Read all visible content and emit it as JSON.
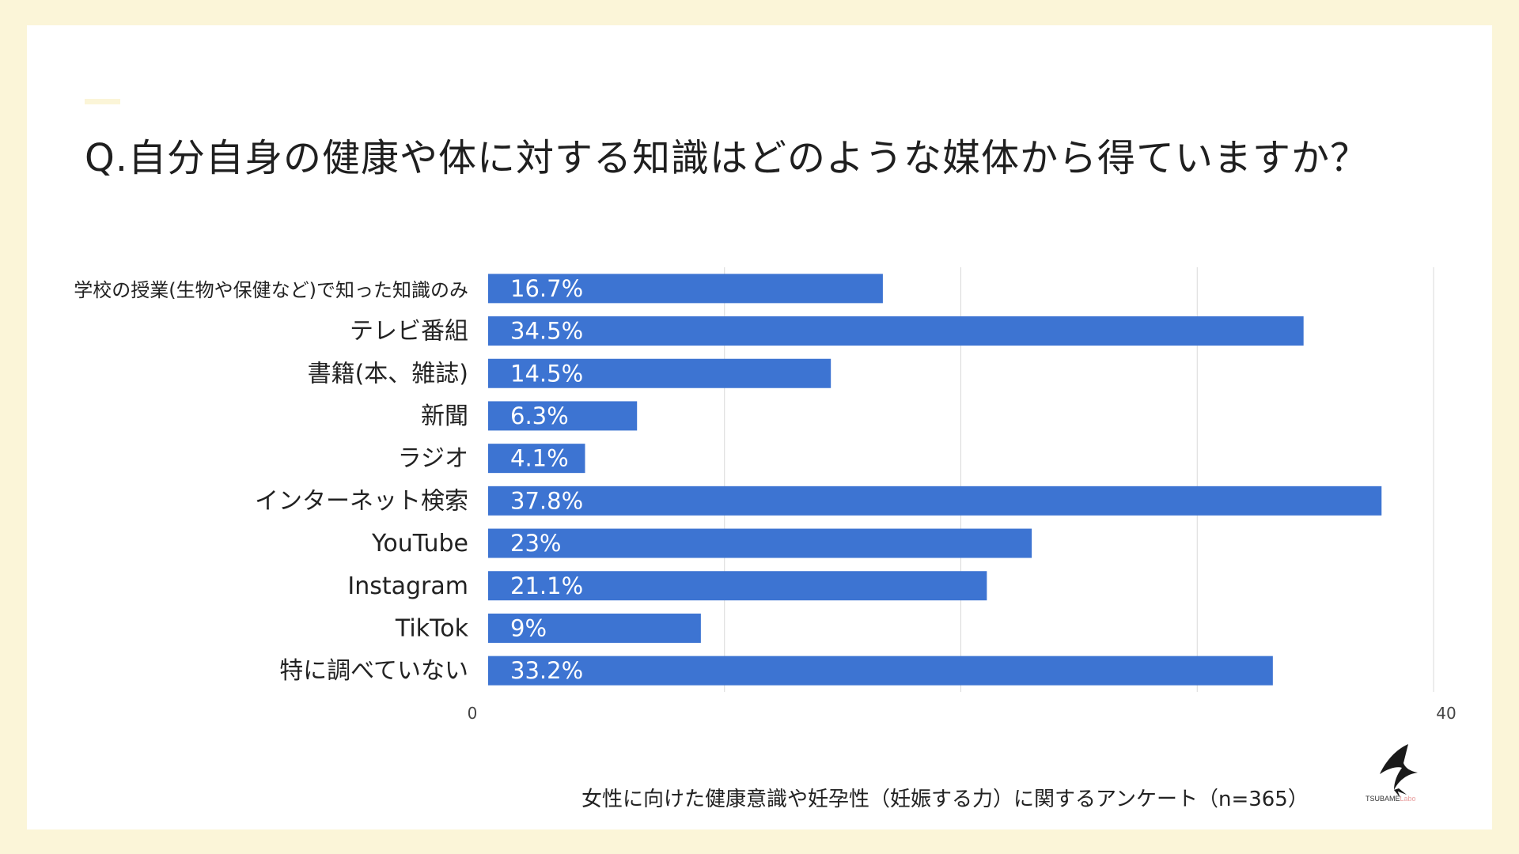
{
  "title": "Q.自分自身の健康や体に対する知識はどのような媒体から得ていますか？",
  "footer": "女性に向けた健康意識や妊孕性（妊娠する力）に関するアンケート（n=365）",
  "logo": {
    "name": "TSUBAME",
    "suffix": "Labo"
  },
  "colors": {
    "bar": "#3d74d2",
    "background": "#fbf5d8",
    "card": "#ffffff",
    "grid": "#d9d9d9"
  },
  "chart_data": {
    "type": "bar",
    "orientation": "horizontal",
    "categories": [
      "学校の授業(生物や保健など)で知った知識のみ",
      "テレビ番組",
      "書籍(本、雑誌)",
      "新聞",
      "ラジオ",
      "インターネット検索",
      "YouTube",
      "Instagram",
      "TikTok",
      "特に調べていない"
    ],
    "values": [
      16.7,
      34.5,
      14.5,
      6.3,
      4.1,
      37.8,
      23,
      21.1,
      9,
      33.2
    ],
    "data_labels": [
      "16.7%",
      "34.5%",
      "14.5%",
      "6.3%",
      "4.1%",
      "37.8%",
      "23%",
      "21.1%",
      "9%",
      "33.2%"
    ],
    "xlim": [
      0,
      40
    ],
    "tick_labels": [
      "0",
      "40"
    ],
    "gridlines": [
      10,
      20,
      30,
      40
    ],
    "grid": true
  }
}
